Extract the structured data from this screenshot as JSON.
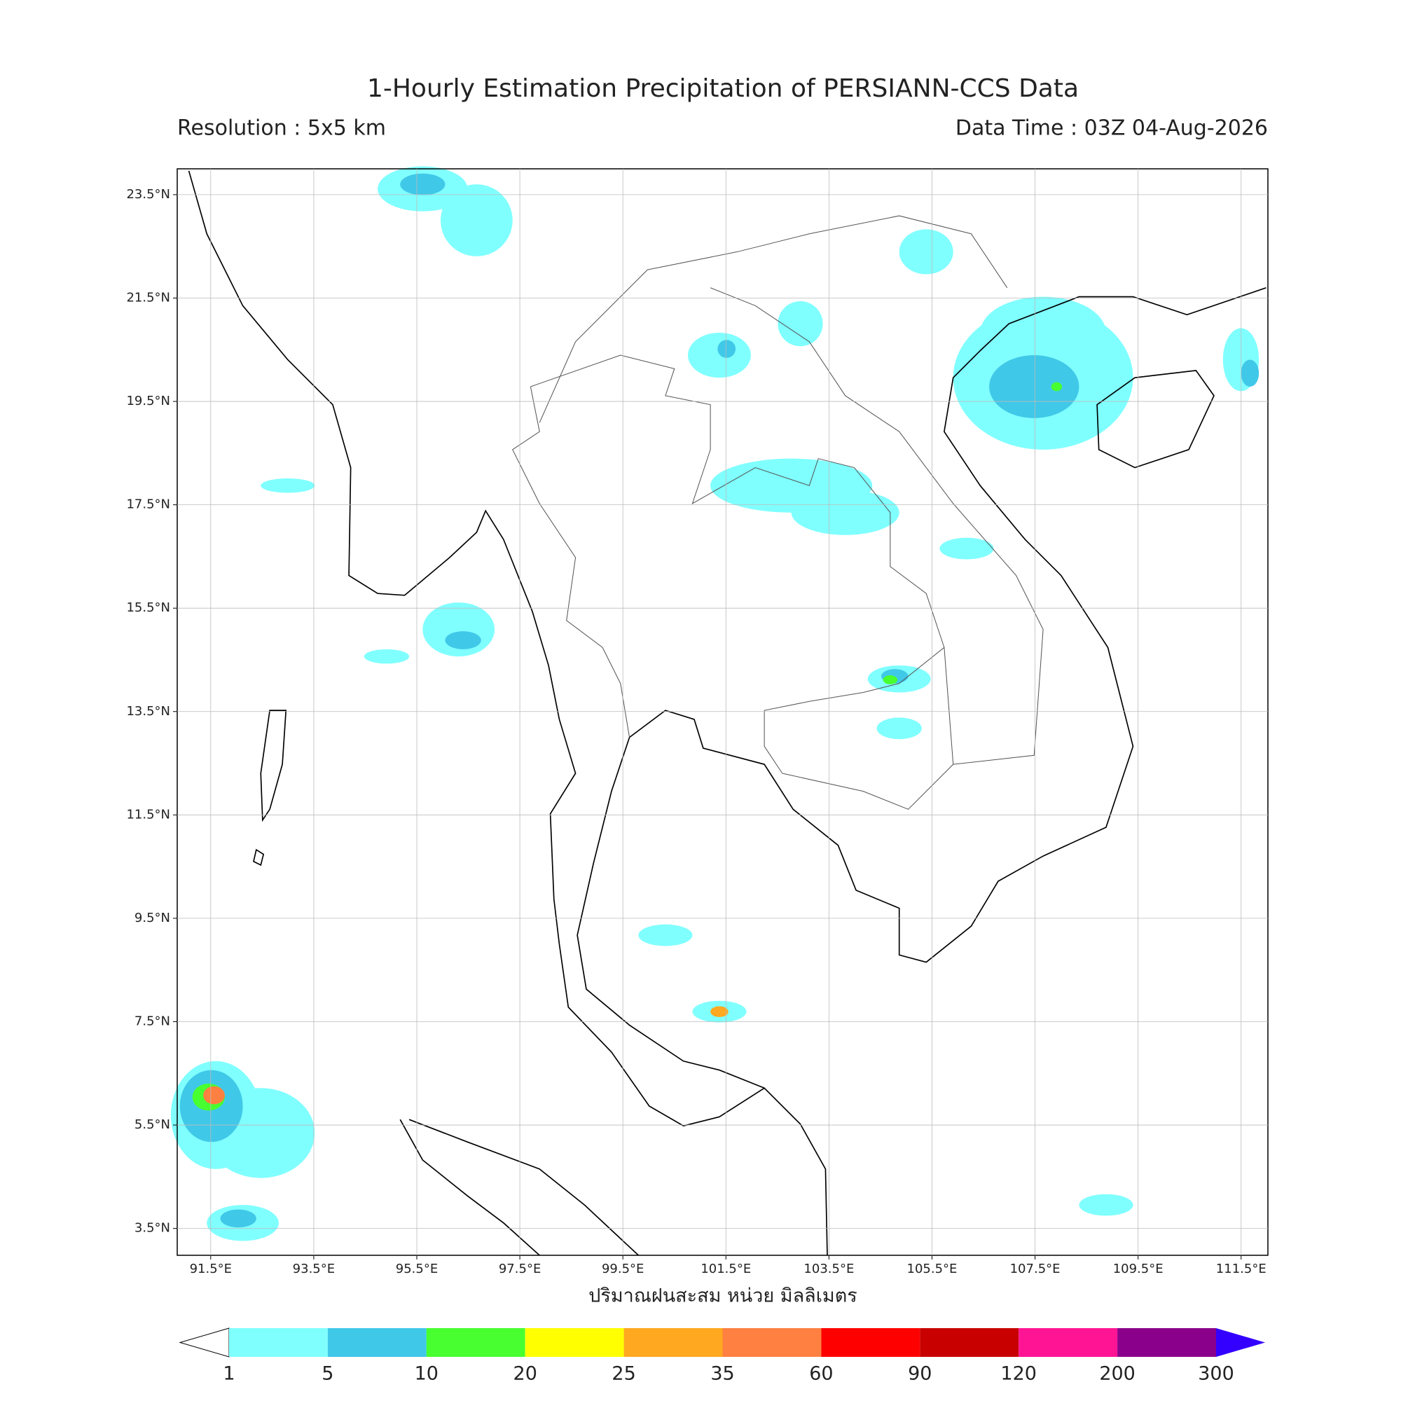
{
  "header": {
    "title": "1-Hourly Estimation Precipitation of PERSIANN-CCS Data",
    "resolution": "Resolution : 5x5 km",
    "data_time": "Data Time : 03Z 04-Aug-2026"
  },
  "map": {
    "lon_lim": [
      90.85,
      112.02
    ],
    "lat_lim": [
      2.98,
      24.0
    ],
    "grid": true,
    "lon_ticks": [
      {
        "value": 91.5,
        "label": "91.5°E"
      },
      {
        "value": 93.5,
        "label": "93.5°E"
      },
      {
        "value": 95.5,
        "label": "95.5°E"
      },
      {
        "value": 97.5,
        "label": "97.5°E"
      },
      {
        "value": 99.5,
        "label": "99.5°E"
      },
      {
        "value": 101.5,
        "label": "101.5°E"
      },
      {
        "value": 103.5,
        "label": "103.5°E"
      },
      {
        "value": 105.5,
        "label": "105.5°E"
      },
      {
        "value": 107.5,
        "label": "107.5°E"
      },
      {
        "value": 109.5,
        "label": "109.5°E"
      },
      {
        "value": 111.5,
        "label": "111.5°E"
      }
    ],
    "lat_ticks": [
      {
        "value": 23.5,
        "label": "23.5°N"
      },
      {
        "value": 21.5,
        "label": "21.5°N"
      },
      {
        "value": 19.5,
        "label": "19.5°N"
      },
      {
        "value": 17.5,
        "label": "17.5°N"
      },
      {
        "value": 15.5,
        "label": "15.5°N"
      },
      {
        "value": 13.5,
        "label": "13.5°N"
      },
      {
        "value": 11.5,
        "label": "11.5°N"
      },
      {
        "value": 9.5,
        "label": "9.5°N"
      },
      {
        "value": 7.5,
        "label": "7.5°N"
      },
      {
        "value": 5.5,
        "label": "5.5°N"
      },
      {
        "value": 3.5,
        "label": "3.5°N"
      }
    ]
  },
  "colorbar": {
    "label": "ปริมาณฝนสะสม หน่วย มิลลิเมตร",
    "levels": [
      1,
      5,
      10,
      20,
      25,
      35,
      60,
      90,
      120,
      200,
      300
    ],
    "colors": [
      "#80ffff",
      "#40c8e8",
      "#48ff30",
      "#ffff00",
      "#ffa820",
      "#ff8040",
      "#ff0000",
      "#c80000",
      "#ff1493",
      "#8b008b"
    ],
    "under_color": "#ffffff",
    "over_color": "#3300ff"
  }
}
